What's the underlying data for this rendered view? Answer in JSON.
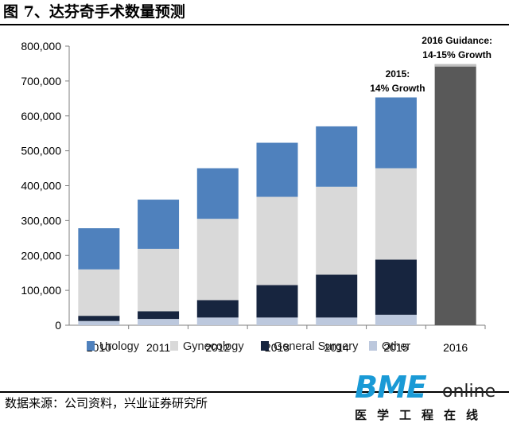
{
  "figure_title": "图 7、达芬奇手术数量预测",
  "source": "数据来源：公司资料，兴业证券研究所",
  "logo": {
    "main": "BME",
    "sub": "online",
    "cn": "医学工程在线"
  },
  "colors": {
    "urology": "#4f81bd",
    "gynecology": "#d9d9d9",
    "general_surgery": "#17253f",
    "other": "#bcc8dd",
    "guidance": "#595959"
  },
  "chart_data": {
    "type": "bar",
    "stacked": true,
    "categories": [
      "2010",
      "2011",
      "2012",
      "2013",
      "2014",
      "2015",
      "2016"
    ],
    "series": [
      {
        "name": "Other",
        "values": [
          12000,
          18000,
          22000,
          22000,
          22000,
          30000,
          null
        ]
      },
      {
        "name": "General Surgery",
        "values": [
          15000,
          22000,
          50000,
          93000,
          123000,
          158000,
          null
        ]
      },
      {
        "name": "Gynecology",
        "values": [
          133000,
          179000,
          233000,
          253000,
          252000,
          262000,
          null
        ]
      },
      {
        "name": "Urology",
        "values": [
          118000,
          141000,
          145000,
          155000,
          173000,
          203000,
          null
        ]
      }
    ],
    "guidance_values": [
      null,
      null,
      null,
      null,
      null,
      null,
      748000
    ],
    "ylim": [
      0,
      800000
    ],
    "yticks": [
      "0",
      "100,000",
      "200,000",
      "300,000",
      "400,000",
      "500,000",
      "600,000",
      "700,000",
      "800,000"
    ],
    "legend": [
      "Urology",
      "Gynecology",
      "General Surgery",
      "Other"
    ],
    "legend_position": "bottom",
    "annotations": [
      {
        "category": "2015",
        "value": 652000,
        "lines": [
          "2015:",
          "14% Growth"
        ]
      },
      {
        "category": "2016",
        "value": 748000,
        "lines": [
          "2016 Guidance:",
          "14-15% Growth"
        ]
      }
    ],
    "grid": false
  }
}
